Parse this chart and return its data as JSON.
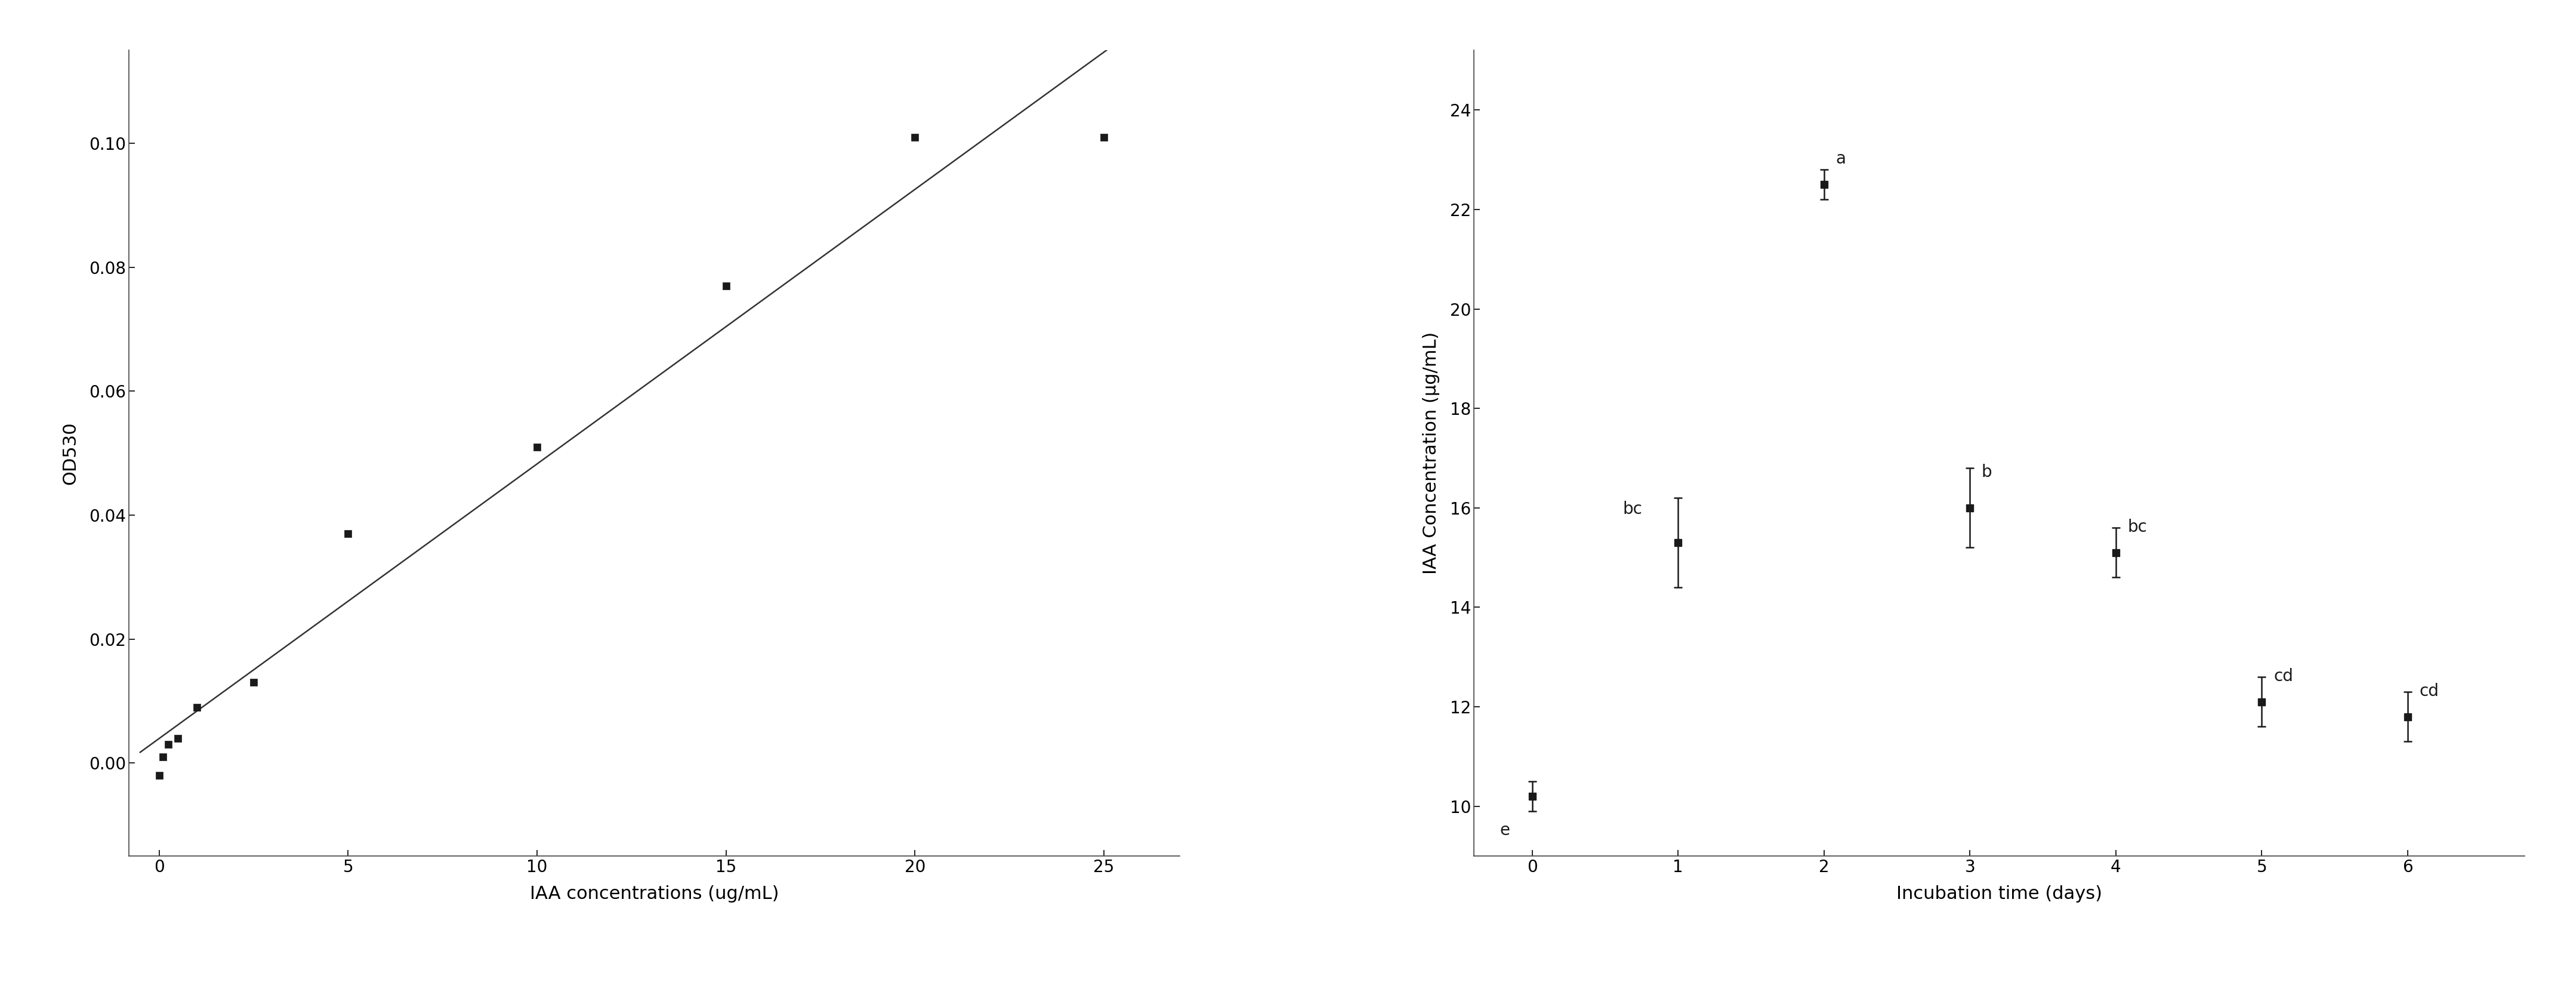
{
  "left_chart": {
    "scatter_x": [
      0.0,
      0.1,
      0.25,
      0.5,
      1.0,
      2.5,
      5.0,
      10.0,
      15.0,
      20.0,
      25.0
    ],
    "scatter_y": [
      -0.002,
      0.001,
      0.003,
      0.004,
      0.009,
      0.013,
      0.037,
      0.051,
      0.077,
      0.101,
      0.101
    ],
    "xlabel": "IAA concentrations (ug/mL)",
    "ylabel": "OD530",
    "xlim": [
      -0.8,
      27
    ],
    "ylim": [
      -0.015,
      0.115
    ],
    "yticks": [
      0.0,
      0.02,
      0.04,
      0.06,
      0.08,
      0.1
    ],
    "xticks": [
      0,
      5,
      10,
      15,
      20,
      25
    ]
  },
  "right_chart": {
    "x_data": [
      0,
      1,
      2,
      3,
      4,
      5,
      6
    ],
    "y_data": [
      10.2,
      15.3,
      22.5,
      16.0,
      15.1,
      12.1,
      11.8
    ],
    "y_err": [
      0.3,
      0.9,
      0.3,
      0.8,
      0.5,
      0.5,
      0.5
    ],
    "labels": [
      "e",
      "bc",
      "a",
      "b",
      "bc",
      "cd",
      "cd"
    ],
    "annot_dx": [
      -0.22,
      -0.38,
      0.08,
      0.08,
      0.08,
      0.08,
      0.08
    ],
    "annot_dy": [
      -0.85,
      0.5,
      0.35,
      0.55,
      0.35,
      0.35,
      0.35
    ],
    "xlabel": "Incubation time (days)",
    "ylabel": "IAA Concentration (μg/mL)",
    "xlim": [
      -0.4,
      6.8
    ],
    "ylim": [
      9.0,
      25.2
    ],
    "yticks": [
      10,
      12,
      14,
      16,
      18,
      20,
      22,
      24
    ],
    "xticks": [
      0,
      1,
      2,
      3,
      4,
      5,
      6
    ]
  },
  "marker_style": "s",
  "marker_size": 9,
  "marker_color": "#1a1a1a",
  "line_color": "#333333",
  "font_size_label": 22,
  "font_size_tick": 20,
  "font_size_annot": 20,
  "bg_color": "#ffffff"
}
